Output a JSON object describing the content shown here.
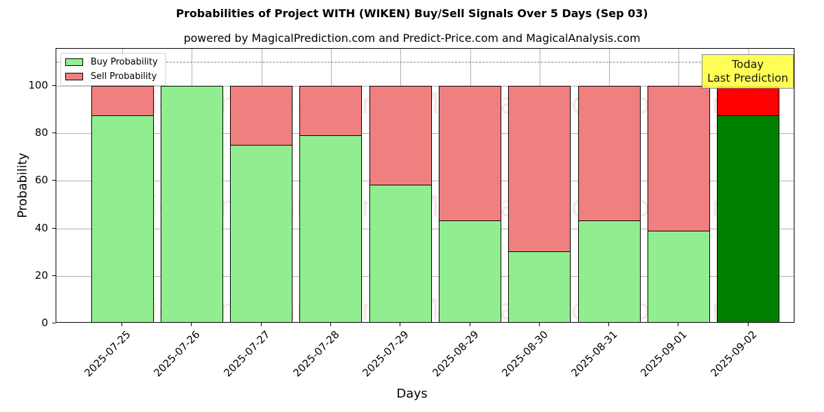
{
  "chart_data": {
    "type": "bar",
    "stacked": true,
    "title": "Probabilities of Project WITH (WIKEN) Buy/Sell Signals Over 5 Days (Sep 03)",
    "subtitle": "powered by MagicalPrediction.com and Predict-Price.com and MagicalAnalysis.com",
    "xlabel": "Days",
    "ylabel": "Probability",
    "ylim": [
      0,
      115
    ],
    "yticks": [
      0,
      20,
      40,
      60,
      80,
      100
    ],
    "grid": true,
    "legend_position": "upper left",
    "categories": [
      "2025-07-25",
      "2025-07-26",
      "2025-07-27",
      "2025-07-28",
      "2025-07-29",
      "2025-08-29",
      "2025-08-30",
      "2025-08-31",
      "2025-09-01",
      "2025-09-02"
    ],
    "series": [
      {
        "name": "Buy Probability",
        "color": "#90ee90",
        "values": [
          87.6,
          100,
          75.1,
          79.2,
          58.4,
          43.4,
          30.3,
          43.4,
          39.0,
          87.6
        ]
      },
      {
        "name": "Sell Probability",
        "color": "#f08080",
        "values": [
          12.4,
          0,
          24.9,
          20.8,
          41.6,
          56.6,
          69.7,
          56.6,
          61.0,
          12.4
        ]
      }
    ],
    "highlight": {
      "index": 9,
      "buy_color": "#008000",
      "sell_color": "#ff0000"
    },
    "reference_line": {
      "y": 110,
      "style": "dashed",
      "color": "#808080"
    },
    "annotation": {
      "text_line1": "Today",
      "text_line2": "Last Prediction",
      "background": "#ffff44"
    },
    "watermarks": [
      "MagicalAnalysis.com",
      "MagicalPrediction.com"
    ]
  }
}
